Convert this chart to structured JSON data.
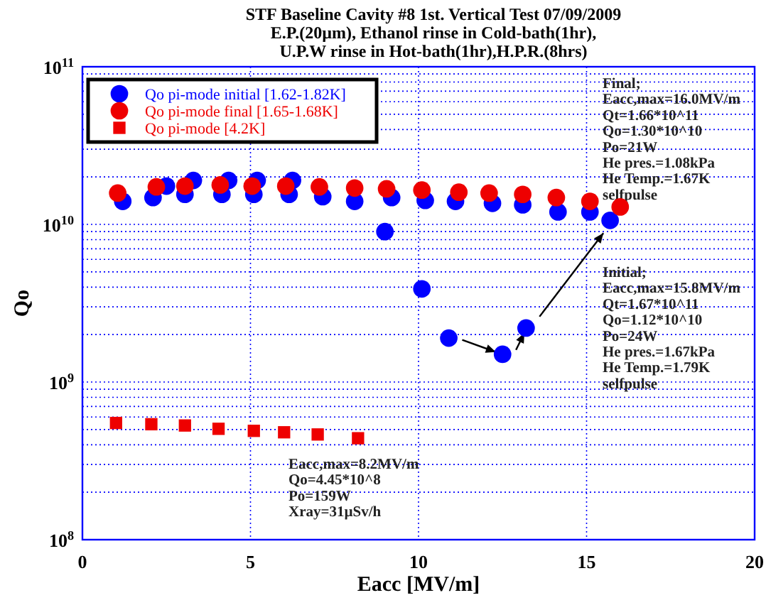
{
  "chart_data": {
    "type": "scatter",
    "title": "STF Baseline Cavity #8 1st. Vertical Test 07/09/2009",
    "subtitle": "E.P.(20µm), Ethanol rinse in Cold-bath(1hr),\nU.P.W rinse in Hot-bath(1hr),H.P.R.(8hrs)",
    "xlabel": "Eacc [MV/m]",
    "ylabel": "Qo",
    "log": "y",
    "grid": true,
    "legend": "top left",
    "xlim": [
      0,
      20
    ],
    "xticks": [
      0,
      5,
      10,
      15,
      20
    ],
    "ylim": [
      100000000.0,
      100000000000.0
    ],
    "yticks": [
      {
        "value": 100000000.0,
        "label": "10$^{8}$"
      },
      {
        "value": 200000000.0,
        "label": null
      },
      {
        "value": 300000000.0,
        "label": null
      },
      {
        "value": 400000000.0,
        "label": null
      },
      {
        "value": 500000000.0,
        "label": null
      },
      {
        "value": 600000000.0,
        "label": null
      },
      {
        "value": 700000000.0,
        "label": null
      },
      {
        "value": 800000000.0,
        "label": null
      },
      {
        "value": 900000000.0,
        "label": null
      },
      {
        "value": 1000000000.0,
        "label": "10$^{9}$"
      },
      {
        "value": 2000000000.0,
        "label": null
      },
      {
        "value": 3000000000.0,
        "label": null
      },
      {
        "value": 4000000000.0,
        "label": null
      },
      {
        "value": 5000000000.0,
        "label": null
      },
      {
        "value": 6000000000.0,
        "label": null
      },
      {
        "value": 7000000000.0,
        "label": null
      },
      {
        "value": 8000000000.0,
        "label": null
      },
      {
        "value": 9000000000.0,
        "label": null
      },
      {
        "value": 10000000000.0,
        "label": "10$^{10}$"
      },
      {
        "value": 20000000000.0,
        "label": null
      },
      {
        "value": 30000000000.0,
        "label": null
      },
      {
        "value": 40000000000.0,
        "label": null
      },
      {
        "value": 50000000000.0,
        "label": null
      },
      {
        "value": 60000000000.0,
        "label": null
      },
      {
        "value": 70000000000.0,
        "label": null
      },
      {
        "value": 80000000000.0,
        "label": null
      },
      {
        "value": 90000000000.0,
        "label": null
      },
      {
        "value": 100000000000.0,
        "label": "10$^{11}$"
      }
    ],
    "series": [
      {
        "name": "Qo pi-mode initial [1.62-1.82K]",
        "color": "#0000ff",
        "marker": "circle",
        "x": [
          1.2,
          2.1,
          2.5,
          3.05,
          3.3,
          4.15,
          4.35,
          5.1,
          5.2,
          6.15,
          6.25,
          7.15,
          8.1,
          9.0,
          9.2,
          10.2,
          11.1,
          12.2,
          13.1,
          14.15,
          15.1,
          15.7,
          10.1,
          10.9,
          12.5,
          13.2
        ],
        "values": [
          14000000000.0,
          14800000000.0,
          17500000000.0,
          15500000000.0,
          19000000000.0,
          15500000000.0,
          19000000000.0,
          15500000000.0,
          19000000000.0,
          15500000000.0,
          19000000000.0,
          15000000000.0,
          14000000000.0,
          9000000000.0,
          14800000000.0,
          14200000000.0,
          14000000000.0,
          13600000000.0,
          13300000000.0,
          12000000000.0,
          12000000000.0,
          10600000000.0,
          3900000000.0,
          1900000000.0,
          1500000000.0,
          2200000000.0
        ]
      },
      {
        "name": "Qo pi-mode final [1.65-1.68K]",
        "color": "#ee0000",
        "marker": "circle",
        "x": [
          1.05,
          2.2,
          3.05,
          4.1,
          5.05,
          6.05,
          7.05,
          8.1,
          9.05,
          10.1,
          11.2,
          12.1,
          13.1,
          14.1,
          15.1,
          16.0
        ],
        "values": [
          15800000000.0,
          17300000000.0,
          17500000000.0,
          17800000000.0,
          17500000000.0,
          17500000000.0,
          17300000000.0,
          17000000000.0,
          16800000000.0,
          16500000000.0,
          16000000000.0,
          15800000000.0,
          15500000000.0,
          14800000000.0,
          14000000000.0,
          12900000000.0
        ]
      },
      {
        "name": "Qo pi-mode [4.2K]",
        "color": "#ee0000",
        "marker": "square",
        "x": [
          1.0,
          2.05,
          3.05,
          4.05,
          5.1,
          6.0,
          7.0,
          8.2
        ],
        "values": [
          550000000.0,
          540000000.0,
          530000000.0,
          505000000.0,
          490000000.0,
          480000000.0,
          465000000.0,
          440000000.0
        ]
      }
    ],
    "annotations": [
      "Final;\nEacc,max=16.0MV/m\nQt=1.66*10^11\nQo=1.30*10^10\nPo=21W\nHe pres.=1.08kPa\nHe Temp.=1.67K\nselfpulse",
      "Initial;\nEacc,max=15.8MV/m\nQt=1.67*10^11\nQo=1.12*10^10\nPo=24W\nHe pres.=1.67kPa\nHe Temp.=1.79K\nselfpulse",
      "Eacc,max=8.2MV/m\nQo=4.45*10^8\nPo=159W\nXray=31µSv/h"
    ]
  }
}
